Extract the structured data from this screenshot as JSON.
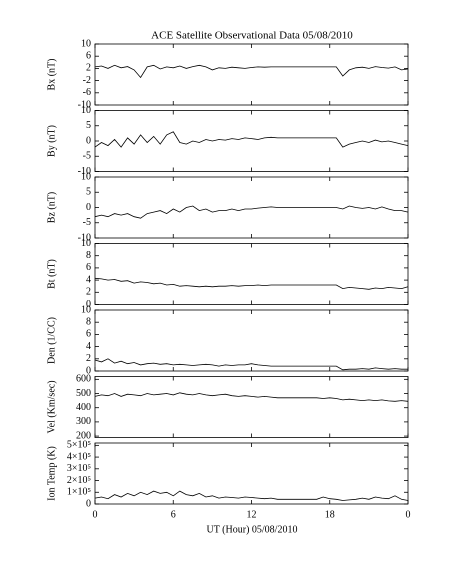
{
  "chart_data": {
    "type": "line",
    "title": "ACE Satellite Observational Data   05/08/2010",
    "xlabel": "UT (Hour)   05/08/2010",
    "xlim": [
      0,
      24
    ],
    "xticks": [
      0,
      6,
      12,
      18,
      {
        "value": 24,
        "label": "0"
      }
    ],
    "x": [
      0,
      0.5,
      1,
      1.5,
      2,
      2.5,
      3,
      3.5,
      4,
      4.5,
      5,
      5.5,
      6,
      6.5,
      7,
      7.5,
      8,
      8.5,
      9,
      9.5,
      10,
      10.5,
      11,
      11.5,
      12,
      12.5,
      13,
      13.5,
      14,
      14.5,
      15,
      15.5,
      16,
      16.5,
      17,
      17.5,
      18,
      18.5,
      19,
      19.5,
      20,
      20.5,
      21,
      21.5,
      22,
      22.5,
      23,
      23.5,
      24
    ],
    "panels": [
      {
        "ylabel": "Bx (nT)",
        "color": "#000000",
        "ylim": [
          -10,
          10
        ],
        "yticks": [
          -10,
          -6,
          -2,
          2,
          6,
          10
        ],
        "values": [
          2.5,
          2.8,
          2,
          3,
          2.2,
          2.6,
          1.5,
          -1,
          2.5,
          3,
          1.8,
          2.5,
          2.2,
          2.8,
          2,
          2.6,
          3,
          2.5,
          1.5,
          2.2,
          2,
          2.4,
          2.2,
          2,
          2.3,
          2.5,
          2.4,
          2.5,
          2.5,
          2.5,
          2.5,
          2.5,
          2.5,
          2.5,
          2.5,
          2.5,
          2.5,
          2.5,
          -0.5,
          1.5,
          2.2,
          2.4,
          2,
          2.6,
          2.3,
          2.1,
          2.5,
          1.5,
          1.8
        ]
      },
      {
        "ylabel": "By (nT)",
        "color": "#000000",
        "ylim": [
          -10,
          10
        ],
        "yticks": [
          -10,
          -5,
          0,
          5,
          10
        ],
        "values": [
          -2,
          -0.5,
          -1.5,
          0.5,
          -2,
          1,
          -1,
          2,
          -0.5,
          1.5,
          -1,
          2,
          3,
          -0.5,
          -1,
          0,
          -0.5,
          0.5,
          0,
          0.5,
          0.3,
          0.8,
          0.5,
          1,
          0.8,
          0.5,
          1,
          1.2,
          1,
          1,
          1,
          1,
          1,
          1,
          1,
          1,
          1,
          1,
          -2,
          -1,
          -0.5,
          0,
          -0.5,
          0.3,
          -0.3,
          0,
          -0.5,
          -1,
          -1.5
        ]
      },
      {
        "ylabel": "Bz (nT)",
        "color": "#000000",
        "ylim": [
          -10,
          10
        ],
        "yticks": [
          -10,
          -5,
          0,
          5,
          10
        ],
        "values": [
          -3,
          -2.5,
          -3,
          -2,
          -2.5,
          -2,
          -3,
          -3.5,
          -2,
          -1.5,
          -1,
          -2,
          -0.5,
          -1.5,
          0,
          0.5,
          -1,
          -0.5,
          -1.5,
          -1,
          -1,
          -0.5,
          -1,
          -0.5,
          -0.5,
          -0.2,
          0,
          0.2,
          0,
          0,
          0,
          0,
          0,
          0,
          0,
          0,
          0,
          0,
          -0.5,
          0.5,
          0,
          -0.3,
          0,
          -0.5,
          0.2,
          -0.5,
          -1,
          -1,
          -1.5
        ]
      },
      {
        "ylabel": "Bt (nT)",
        "color": "#000000",
        "ylim": [
          0,
          10
        ],
        "yticks": [
          0,
          2,
          4,
          6,
          8,
          10
        ],
        "values": [
          4.3,
          4.2,
          4,
          4.1,
          3.8,
          3.9,
          3.5,
          3.7,
          3.6,
          3.4,
          3.5,
          3.2,
          3.3,
          3,
          3.1,
          3,
          2.9,
          3,
          2.9,
          3,
          3,
          3.1,
          3,
          3.1,
          3.1,
          3.2,
          3.1,
          3.2,
          3.2,
          3.2,
          3.2,
          3.2,
          3.2,
          3.2,
          3.2,
          3.2,
          3.2,
          3.2,
          2.6,
          2.8,
          2.7,
          2.6,
          2.5,
          2.7,
          2.6,
          2.8,
          2.7,
          2.6,
          2.9
        ]
      },
      {
        "ylabel": "Den (1/CC)",
        "color": "#000000",
        "ylim": [
          0,
          10
        ],
        "yticks": [
          0,
          2,
          4,
          6,
          8,
          10
        ],
        "values": [
          1.8,
          1.5,
          2,
          1.3,
          1.6,
          1.2,
          1.4,
          1,
          1.2,
          1.3,
          1.1,
          1.2,
          1,
          1.1,
          1,
          0.9,
          1,
          1.1,
          1,
          0.8,
          1,
          0.9,
          1,
          1,
          1.2,
          1,
          0.9,
          0.8,
          0.8,
          0.8,
          0.8,
          0.8,
          0.8,
          0.8,
          0.8,
          0.8,
          0.8,
          0.8,
          0.2,
          0.3,
          0.3,
          0.4,
          0.3,
          0.5,
          0.4,
          0.3,
          0.4,
          0.3,
          0.3
        ]
      },
      {
        "ylabel": "Vel (Km/sec)",
        "color": "#000000",
        "ylim": [
          190,
          620
        ],
        "yticks": [
          200,
          300,
          400,
          500,
          600
        ],
        "values": [
          480,
          490,
          485,
          500,
          480,
          495,
          490,
          485,
          500,
          490,
          495,
          500,
          490,
          505,
          495,
          490,
          500,
          490,
          485,
          490,
          495,
          485,
          480,
          485,
          480,
          475,
          480,
          475,
          470,
          470,
          470,
          470,
          470,
          470,
          470,
          465,
          470,
          465,
          455,
          460,
          455,
          450,
          455,
          450,
          455,
          448,
          445,
          450,
          445
        ]
      },
      {
        "ylabel": "Ion Temp (K)",
        "color": "#000000",
        "ylim": [
          0,
          520000
        ],
        "yticks": [
          0,
          {
            "value": 100000,
            "label": "1×10⁵"
          },
          {
            "value": 200000,
            "label": "2×10⁵"
          },
          {
            "value": 300000,
            "label": "3×10⁵"
          },
          {
            "value": 400000,
            "label": "4×10⁵"
          },
          {
            "value": 500000,
            "label": "5×10⁵"
          }
        ],
        "values": [
          50000,
          60000,
          45000,
          80000,
          60000,
          90000,
          70000,
          100000,
          80000,
          110000,
          90000,
          100000,
          70000,
          110000,
          80000,
          70000,
          90000,
          60000,
          70000,
          50000,
          60000,
          55000,
          50000,
          60000,
          55000,
          50000,
          45000,
          50000,
          40000,
          40000,
          40000,
          40000,
          40000,
          40000,
          40000,
          60000,
          45000,
          40000,
          30000,
          35000,
          40000,
          50000,
          40000,
          60000,
          50000,
          45000,
          70000,
          40000,
          30000
        ]
      }
    ]
  }
}
